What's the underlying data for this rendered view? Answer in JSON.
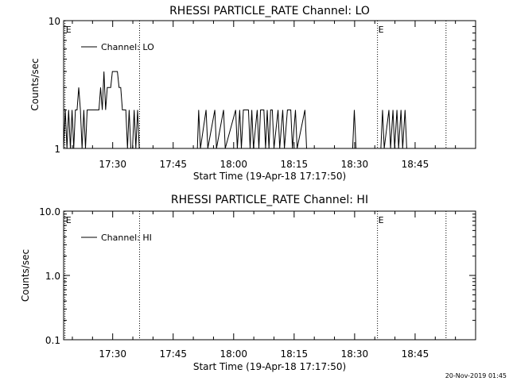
{
  "stamp": "20-Nov-2019 01:45",
  "chart_data": [
    {
      "type": "line",
      "title": "RHESSI PARTICLE_RATE Channel: LO",
      "xlabel": "Start Time (19-Apr-18 17:17:50)",
      "ylabel": "Counts/sec",
      "xlim": [
        "17:17:50",
        "19:00:00"
      ],
      "x_ticks": [
        "17:30",
        "17:45",
        "18:00",
        "18:15",
        "18:30",
        "18:45"
      ],
      "y_scale": "log",
      "ylim": [
        1,
        10
      ],
      "y_ticks": [
        "1",
        "10"
      ],
      "legend": {
        "placement": "top-left",
        "entries": [
          "Channel: LO"
        ]
      },
      "markers": [
        {
          "time": "17:18:10",
          "label": "E"
        },
        {
          "time": "17:36:40",
          "label": ""
        },
        {
          "time": "18:35:40",
          "label": "E"
        },
        {
          "time": "18:52:40",
          "label": ""
        }
      ],
      "series": [
        {
          "name": "Channel: LO",
          "points": [
            [
              "17:17:50",
              1
            ],
            [
              "17:18:15",
              2
            ],
            [
              "17:18:40",
              1
            ],
            [
              "17:19:05",
              2
            ],
            [
              "17:19:30",
              1
            ],
            [
              "17:19:55",
              2
            ],
            [
              "17:20:20",
              1
            ],
            [
              "17:20:45",
              2
            ],
            [
              "17:21:10",
              2
            ],
            [
              "17:21:35",
              3
            ],
            [
              "17:22:00",
              2
            ],
            [
              "17:22:25",
              1
            ],
            [
              "17:22:50",
              2
            ],
            [
              "17:23:15",
              1
            ],
            [
              "17:23:40",
              2
            ],
            [
              "17:24:05",
              2
            ],
            [
              "17:24:30",
              2
            ],
            [
              "17:24:55",
              2
            ],
            [
              "17:25:20",
              2
            ],
            [
              "17:25:45",
              2
            ],
            [
              "17:26:10",
              2
            ],
            [
              "17:26:35",
              2
            ],
            [
              "17:27:00",
              3
            ],
            [
              "17:27:25",
              2
            ],
            [
              "17:27:50",
              4
            ],
            [
              "17:28:15",
              2
            ],
            [
              "17:28:40",
              3
            ],
            [
              "17:29:05",
              3
            ],
            [
              "17:29:30",
              3
            ],
            [
              "17:29:55",
              4
            ],
            [
              "17:30:20",
              4
            ],
            [
              "17:30:45",
              4
            ],
            [
              "17:31:10",
              4
            ],
            [
              "17:31:35",
              3
            ],
            [
              "17:32:00",
              3
            ],
            [
              "17:32:25",
              2
            ],
            [
              "17:32:50",
              2
            ],
            [
              "17:33:15",
              2
            ],
            [
              "17:33:40",
              1
            ],
            [
              "17:34:05",
              2
            ],
            [
              "17:34:30",
              1
            ],
            [
              "17:34:55",
              1
            ],
            [
              "17:35:20",
              2
            ],
            [
              "17:35:45",
              1
            ],
            [
              "17:36:10",
              2
            ],
            [
              "17:36:35",
              1
            ],
            [
              "17:36:40",
              1
            ],
            [
              "17:51:00",
              1
            ],
            [
              "17:51:20",
              2
            ],
            [
              "17:51:45",
              1
            ],
            [
              "17:53:10",
              2
            ],
            [
              "17:53:35",
              1
            ],
            [
              "17:55:20",
              2
            ],
            [
              "17:55:45",
              1
            ],
            [
              "17:57:30",
              2
            ],
            [
              "17:57:55",
              1
            ],
            [
              "18:00:30",
              2
            ],
            [
              "18:00:55",
              1
            ],
            [
              "18:01:30",
              2
            ],
            [
              "18:01:55",
              1
            ],
            [
              "18:02:25",
              2
            ],
            [
              "18:02:50",
              2
            ],
            [
              "18:03:15",
              2
            ],
            [
              "18:03:40",
              2
            ],
            [
              "18:04:05",
              1
            ],
            [
              "18:04:30",
              2
            ],
            [
              "18:04:55",
              1
            ],
            [
              "18:05:50",
              2
            ],
            [
              "18:06:15",
              1
            ],
            [
              "18:06:40",
              2
            ],
            [
              "18:07:05",
              2
            ],
            [
              "18:07:30",
              2
            ],
            [
              "18:07:55",
              1
            ],
            [
              "18:08:20",
              2
            ],
            [
              "18:08:45",
              1
            ],
            [
              "18:09:10",
              2
            ],
            [
              "18:09:35",
              2
            ],
            [
              "18:10:00",
              1
            ],
            [
              "18:11:00",
              2
            ],
            [
              "18:11:25",
              1
            ],
            [
              "18:12:10",
              2
            ],
            [
              "18:12:35",
              1
            ],
            [
              "18:13:20",
              2
            ],
            [
              "18:13:45",
              2
            ],
            [
              "18:14:10",
              2
            ],
            [
              "18:14:35",
              1
            ],
            [
              "18:15:20",
              2
            ],
            [
              "18:15:45",
              1
            ],
            [
              "18:17:40",
              2
            ],
            [
              "18:18:05",
              1
            ],
            [
              "18:29:30",
              1
            ],
            [
              "18:29:55",
              2
            ],
            [
              "18:30:20",
              1
            ],
            [
              "18:36:30",
              1
            ],
            [
              "18:36:55",
              2
            ],
            [
              "18:37:20",
              1
            ],
            [
              "18:38:30",
              2
            ],
            [
              "18:38:55",
              1
            ],
            [
              "18:39:30",
              2
            ],
            [
              "18:39:55",
              1
            ],
            [
              "18:40:30",
              2
            ],
            [
              "18:40:55",
              1
            ],
            [
              "18:41:30",
              2
            ],
            [
              "18:41:55",
              1
            ],
            [
              "18:42:30",
              2
            ],
            [
              "18:42:55",
              1
            ],
            [
              "18:43:00",
              1
            ]
          ]
        }
      ]
    },
    {
      "type": "line",
      "title": "RHESSI PARTICLE_RATE Channel: HI",
      "xlabel": "Start Time (19-Apr-18 17:17:50)",
      "ylabel": "Counts/sec",
      "xlim": [
        "17:17:50",
        "19:00:00"
      ],
      "x_ticks": [
        "17:30",
        "17:45",
        "18:00",
        "18:15",
        "18:30",
        "18:45"
      ],
      "y_scale": "log",
      "ylim": [
        0.1,
        10
      ],
      "y_ticks": [
        "0.1",
        "1.0",
        "10.0"
      ],
      "legend": {
        "placement": "top-left",
        "entries": [
          "Channel: HI"
        ]
      },
      "markers": [
        {
          "time": "17:18:10",
          "label": "E"
        },
        {
          "time": "17:36:40",
          "label": ""
        },
        {
          "time": "18:35:40",
          "label": "E"
        },
        {
          "time": "18:52:40",
          "label": ""
        }
      ],
      "series": [
        {
          "name": "Channel: HI",
          "points": []
        }
      ]
    }
  ]
}
